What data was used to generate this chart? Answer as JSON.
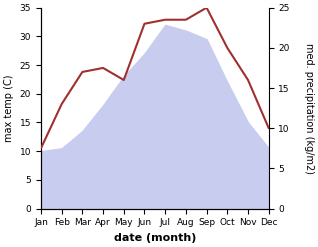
{
  "months": [
    "Jan",
    "Feb",
    "Mar",
    "Apr",
    "May",
    "Jun",
    "Jul",
    "Aug",
    "Sep",
    "Oct",
    "Nov",
    "Dec"
  ],
  "temperature": [
    10.0,
    10.5,
    13.5,
    18.0,
    23.0,
    27.0,
    32.0,
    31.0,
    29.5,
    22.0,
    15.0,
    10.5
  ],
  "precipitation": [
    7.5,
    13.0,
    17.0,
    17.5,
    16.0,
    23.0,
    23.5,
    23.5,
    25.0,
    20.0,
    16.0,
    10.0
  ],
  "temp_fill_color": "#c8ccee",
  "precip_color": "#a03030",
  "ylim_temp": [
    0,
    35
  ],
  "ylim_precip": [
    0,
    25
  ],
  "xlabel": "date (month)",
  "ylabel_left": "max temp (C)",
  "ylabel_right": "med. precipitation (kg/m2)",
  "yticks_left": [
    0,
    5,
    10,
    15,
    20,
    25,
    30,
    35
  ],
  "yticks_right": [
    0,
    5,
    10,
    15,
    20,
    25
  ],
  "bg_color": "#ffffff",
  "title_fontsize": 8,
  "label_fontsize": 7,
  "tick_fontsize": 6.5,
  "xlabel_fontsize": 8
}
